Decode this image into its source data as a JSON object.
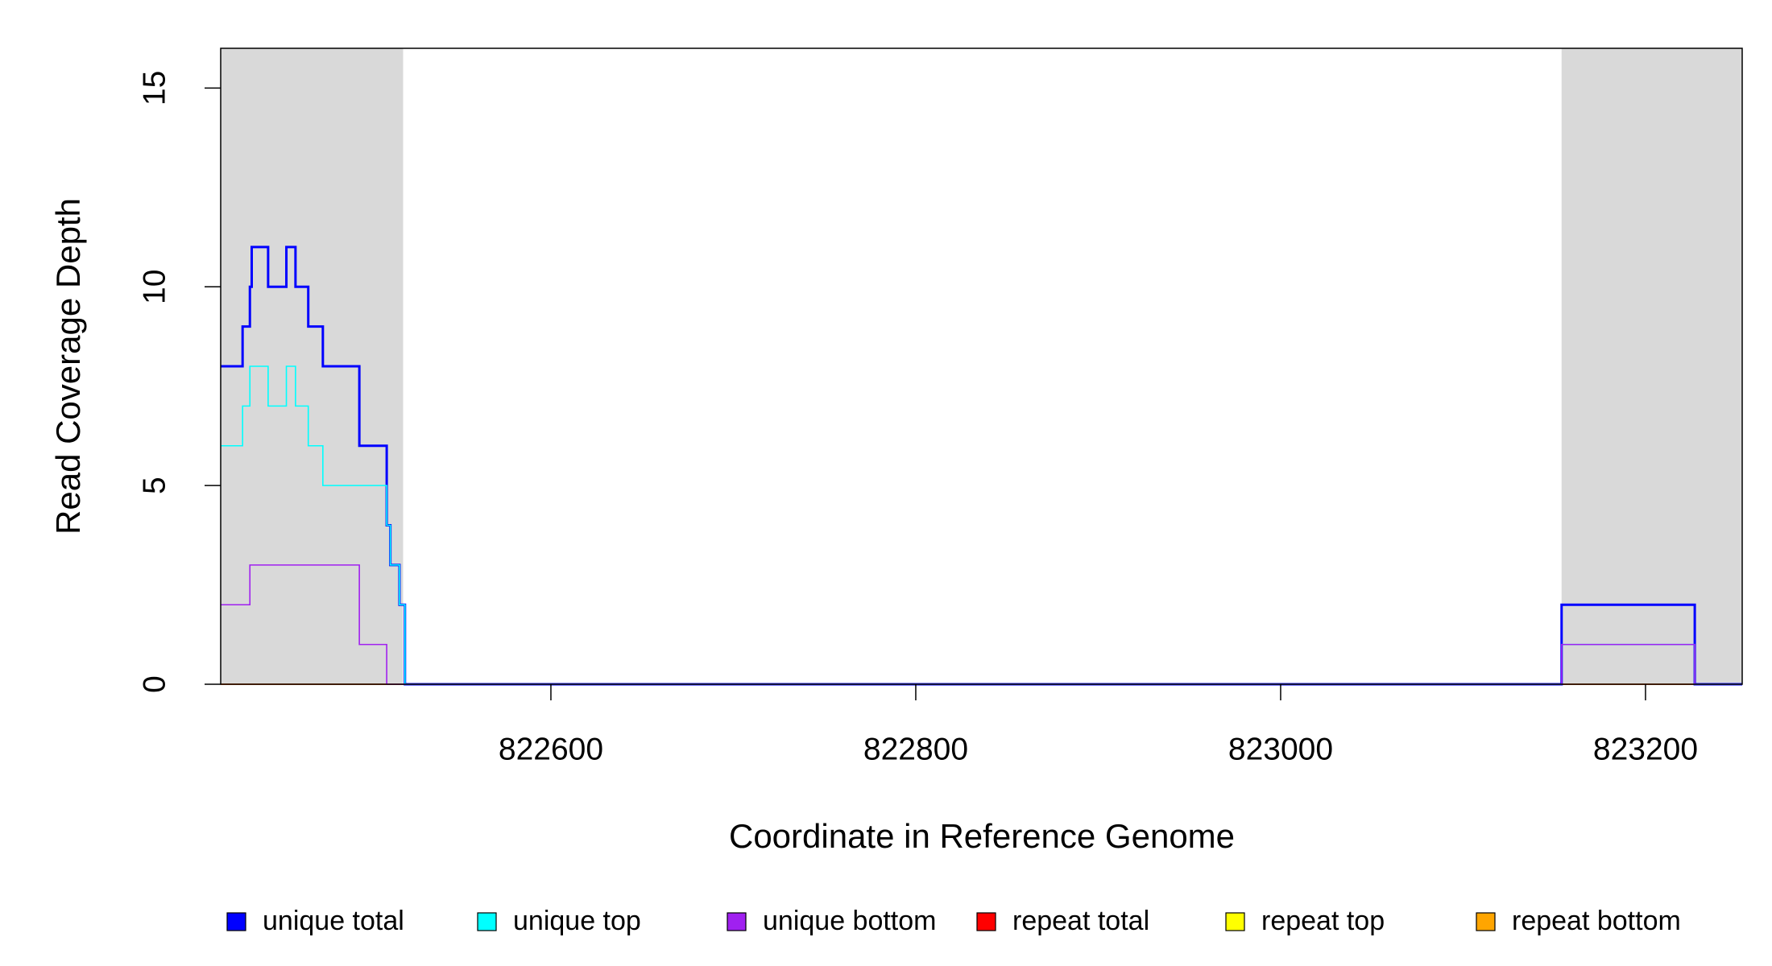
{
  "chart_data": {
    "type": "step",
    "x_label": "Coordinate in Reference Genome",
    "y_label": "Read Coverage Depth",
    "x": [
      822419,
      822431,
      822435,
      822436,
      822445,
      822455,
      822460,
      822467,
      822475,
      822495,
      822510,
      822512,
      822517,
      822520,
      823154,
      823227,
      823253
    ],
    "series": [
      {
        "name": "unique total",
        "color": "#0000ff",
        "values": [
          8,
          9,
          10,
          11,
          10,
          11,
          10,
          9,
          8,
          6,
          4,
          3,
          2,
          0,
          2,
          0,
          0
        ]
      },
      {
        "name": "unique top",
        "color": "#00ffff",
        "values": [
          6,
          7,
          8,
          8,
          7,
          8,
          7,
          6,
          5,
          5,
          4,
          3,
          2,
          0,
          1,
          0,
          0
        ]
      },
      {
        "name": "unique bottom",
        "color": "#a020f0",
        "values": [
          2,
          2,
          3,
          3,
          3,
          3,
          3,
          3,
          3,
          1,
          0,
          0,
          0,
          0,
          1,
          0,
          0
        ]
      },
      {
        "name": "repeat total",
        "color": "#ff0000",
        "values": [
          0,
          0,
          0,
          0,
          0,
          0,
          0,
          0,
          0,
          0,
          0,
          0,
          0,
          0,
          0,
          0,
          0
        ]
      },
      {
        "name": "repeat top",
        "color": "#ffff00",
        "values": [
          0,
          0,
          0,
          0,
          0,
          0,
          0,
          0,
          0,
          0,
          0,
          0,
          0,
          0,
          0,
          0,
          0
        ]
      },
      {
        "name": "repeat bottom",
        "color": "#ffa500",
        "values": [
          0,
          0,
          0,
          0,
          0,
          0,
          0,
          0,
          0,
          0,
          0,
          0,
          0,
          0,
          0,
          0,
          0
        ]
      }
    ],
    "shaded_regions": [
      [
        822419,
        822519
      ],
      [
        823154,
        823253
      ]
    ],
    "shade_color": "#d9d9d9",
    "xlim": [
      822419,
      823253
    ],
    "xticks": [
      822600,
      822800,
      823000,
      823200
    ],
    "ylim": [
      0,
      16
    ],
    "yticks": [
      0,
      5,
      10,
      15
    ]
  }
}
